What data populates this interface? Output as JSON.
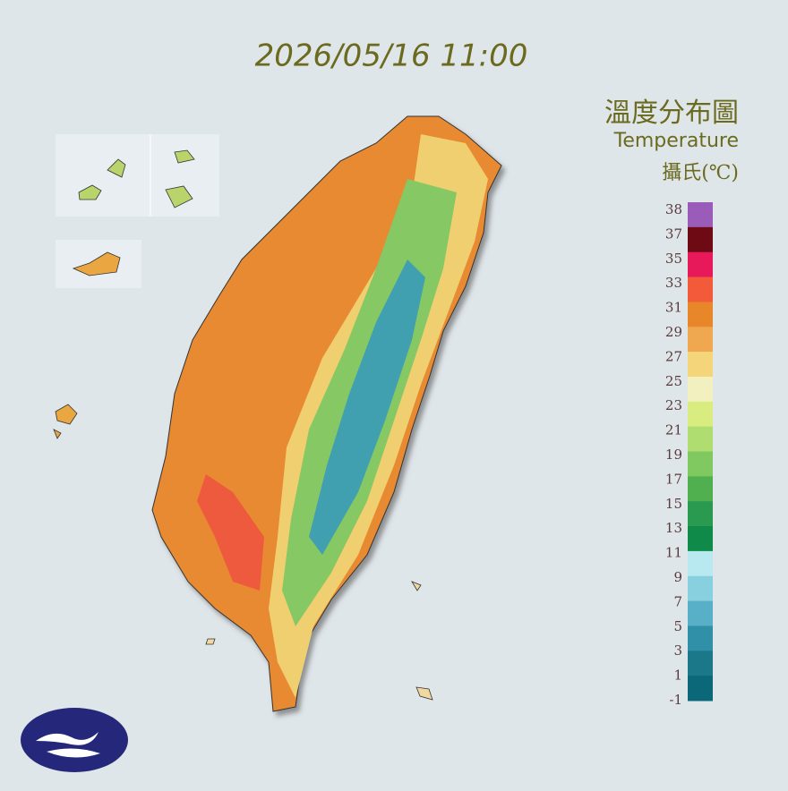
{
  "timestamp": "2026/05/16 11:00",
  "title": "溫度分布圖",
  "subtitle": "Temperature",
  "unit": "攝氏(℃)",
  "legend": {
    "ticks": [
      38,
      37,
      35,
      33,
      31,
      29,
      27,
      25,
      23,
      21,
      19,
      17,
      15,
      13,
      11,
      9,
      7,
      5,
      3,
      1,
      -1
    ],
    "colors": [
      "#9a5cb8",
      "#6e0a14",
      "#e8195a",
      "#f25a3a",
      "#e8862a",
      "#f0a850",
      "#f5d57a",
      "#f3f0c0",
      "#d8ec80",
      "#b0dd70",
      "#80c860",
      "#50b050",
      "#2a9a50",
      "#108a48",
      "#b8e8f0",
      "#88d0e0",
      "#58b0c8",
      "#3090a8",
      "#1a7888",
      "#0a6878"
    ]
  }
}
